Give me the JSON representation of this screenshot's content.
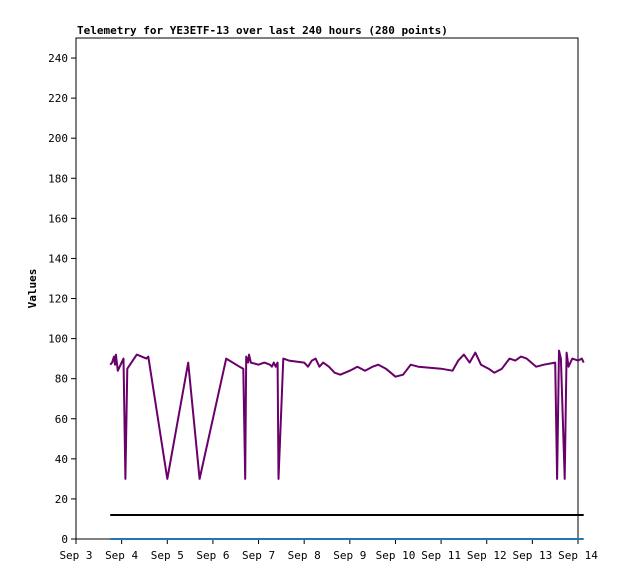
{
  "chart_data": {
    "type": "line",
    "title": "Telemetry for YE3ETF-13 over last 240 hours (280 points)",
    "xlabel": "",
    "ylabel": "Values",
    "x_axis": {
      "type": "date",
      "range": [
        "2019-09-03",
        "2019-09-14"
      ],
      "ticks": [
        "Sep 3",
        "Sep 4",
        "Sep 5",
        "Sep 6",
        "Sep 7",
        "Sep 8",
        "Sep 9",
        "Sep 10",
        "Sep 11",
        "Sep 12",
        "Sep 13",
        "Sep 14"
      ]
    },
    "y_axis": {
      "range": [
        0,
        250
      ],
      "ticks": [
        0,
        20,
        40,
        60,
        80,
        100,
        120,
        140,
        160,
        180,
        200,
        220,
        240
      ]
    },
    "grid": false,
    "legend": "none",
    "series": [
      {
        "color": "#6a006a",
        "points": [
          [
            "2019-09-03 18:00",
            87
          ],
          [
            "2019-09-03 19:00",
            88
          ],
          [
            "2019-09-03 20:00",
            91
          ],
          [
            "2019-09-03 20:30",
            87
          ],
          [
            "2019-09-03 21:00",
            92
          ],
          [
            "2019-09-03 22:00",
            84
          ],
          [
            "2019-09-04 00:00",
            88
          ],
          [
            "2019-09-04 01:00",
            90
          ],
          [
            "2019-09-04 02:00",
            30
          ],
          [
            "2019-09-04 03:00",
            85
          ],
          [
            "2019-09-04 08:00",
            92
          ],
          [
            "2019-09-04 13:00",
            90
          ],
          [
            "2019-09-04 14:00",
            91
          ],
          [
            "2019-09-05 00:00",
            30
          ],
          [
            "2019-09-05 11:00",
            88
          ],
          [
            "2019-09-05 17:00",
            30
          ],
          [
            "2019-09-06 07:00",
            90
          ],
          [
            "2019-09-06 14:00",
            86
          ],
          [
            "2019-09-06 16:00",
            85
          ],
          [
            "2019-09-06 17:00",
            30
          ],
          [
            "2019-09-06 17:30",
            91
          ],
          [
            "2019-09-06 18:30",
            88
          ],
          [
            "2019-09-06 19:00",
            92
          ],
          [
            "2019-09-06 20:00",
            88
          ],
          [
            "2019-09-07 00:00",
            87
          ],
          [
            "2019-09-07 03:00",
            88
          ],
          [
            "2019-09-07 06:00",
            87
          ],
          [
            "2019-09-07 07:00",
            86
          ],
          [
            "2019-09-07 08:00",
            88
          ],
          [
            "2019-09-07 09:00",
            86
          ],
          [
            "2019-09-07 10:00",
            88
          ],
          [
            "2019-09-07 10:30",
            30
          ],
          [
            "2019-09-07 13:00",
            90
          ],
          [
            "2019-09-07 16:00",
            89
          ],
          [
            "2019-09-08 00:00",
            88
          ],
          [
            "2019-09-08 02:00",
            86
          ],
          [
            "2019-09-08 04:00",
            89
          ],
          [
            "2019-09-08 06:00",
            90
          ],
          [
            "2019-09-08 08:00",
            86
          ],
          [
            "2019-09-08 10:00",
            88
          ],
          [
            "2019-09-08 13:00",
            86
          ],
          [
            "2019-09-08 16:00",
            83
          ],
          [
            "2019-09-08 19:00",
            82
          ],
          [
            "2019-09-09 00:00",
            84
          ],
          [
            "2019-09-09 04:00",
            86
          ],
          [
            "2019-09-09 08:00",
            84
          ],
          [
            "2019-09-09 12:00",
            86
          ],
          [
            "2019-09-09 15:00",
            87
          ],
          [
            "2019-09-09 19:00",
            85
          ],
          [
            "2019-09-10 00:00",
            81
          ],
          [
            "2019-09-10 04:00",
            82
          ],
          [
            "2019-09-10 08:00",
            87
          ],
          [
            "2019-09-10 12:00",
            86
          ],
          [
            "2019-09-11 00:00",
            85
          ],
          [
            "2019-09-11 06:00",
            84
          ],
          [
            "2019-09-11 09:00",
            89
          ],
          [
            "2019-09-11 12:00",
            92
          ],
          [
            "2019-09-11 15:00",
            88
          ],
          [
            "2019-09-11 18:00",
            93
          ],
          [
            "2019-09-11 21:00",
            87
          ],
          [
            "2019-09-12 01:00",
            85
          ],
          [
            "2019-09-12 04:00",
            83
          ],
          [
            "2019-09-12 08:00",
            85
          ],
          [
            "2019-09-12 12:00",
            90
          ],
          [
            "2019-09-12 15:00",
            89
          ],
          [
            "2019-09-12 18:00",
            91
          ],
          [
            "2019-09-12 21:00",
            90
          ],
          [
            "2019-09-13 02:00",
            86
          ],
          [
            "2019-09-13 06:00",
            87
          ],
          [
            "2019-09-13 12:00",
            88
          ],
          [
            "2019-09-13 13:00",
            30
          ],
          [
            "2019-09-13 14:00",
            94
          ],
          [
            "2019-09-13 15:00",
            90
          ],
          [
            "2019-09-13 17:00",
            30
          ],
          [
            "2019-09-13 18:00",
            93
          ],
          [
            "2019-09-13 19:00",
            86
          ],
          [
            "2019-09-13 21:00",
            90
          ],
          [
            "2019-09-14 00:00",
            89
          ],
          [
            "2019-09-14 02:00",
            90
          ],
          [
            "2019-09-14 03:00",
            88
          ]
        ]
      },
      {
        "color": "#000000",
        "points": [
          [
            "2019-09-03 18:00",
            12
          ],
          [
            "2019-09-14 03:00",
            12
          ]
        ]
      },
      {
        "color": "#1f77b4",
        "points": [
          [
            "2019-09-03 18:00",
            0
          ],
          [
            "2019-09-14 03:00",
            0
          ]
        ]
      }
    ]
  }
}
